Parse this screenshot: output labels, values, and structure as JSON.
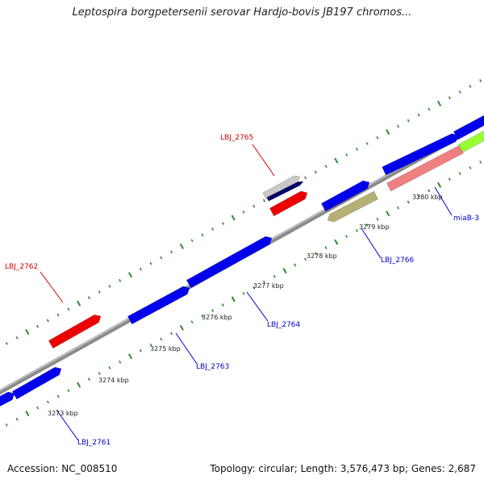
{
  "title": "Leptospira borgpetersenii serovar Hardjo-bovis JB197 chromos...",
  "footer": {
    "accession": "Accession: NC_008510",
    "summary": "Topology: circular; Length: 3,576,473 bp; Genes: 2,687"
  },
  "colors": {
    "backbone": "#8a8a8a",
    "tick": "#2e8b2e",
    "label_red": "#cc0000",
    "label_blue": "#0000cc",
    "gene_blue": "#0000ee",
    "gene_red": "#ee0000",
    "gene_olive": "#b5b074",
    "gene_pink": "#ef8080",
    "gene_lime": "#99ff33",
    "gene_gray": "#c8c8c8",
    "gene_navy": "#000066"
  },
  "kbp_labels": [
    "3273 kbp",
    "3274 kbp",
    "3275 kbp",
    "3276 kbp",
    "3277 kbp",
    "3278 kbp",
    "3279 kbp",
    "3280 kbp"
  ],
  "gene_labels": {
    "LBJ_2765": "LBJ_2765",
    "LBJ_2762": "LBJ_2762",
    "LBJ_2766": "LBJ_2766",
    "miaB_3": "miaB-3",
    "LBJ_2764": "LBJ_2764",
    "LBJ_2763": "LBJ_2763",
    "LBJ_2761": "LBJ_2761"
  }
}
